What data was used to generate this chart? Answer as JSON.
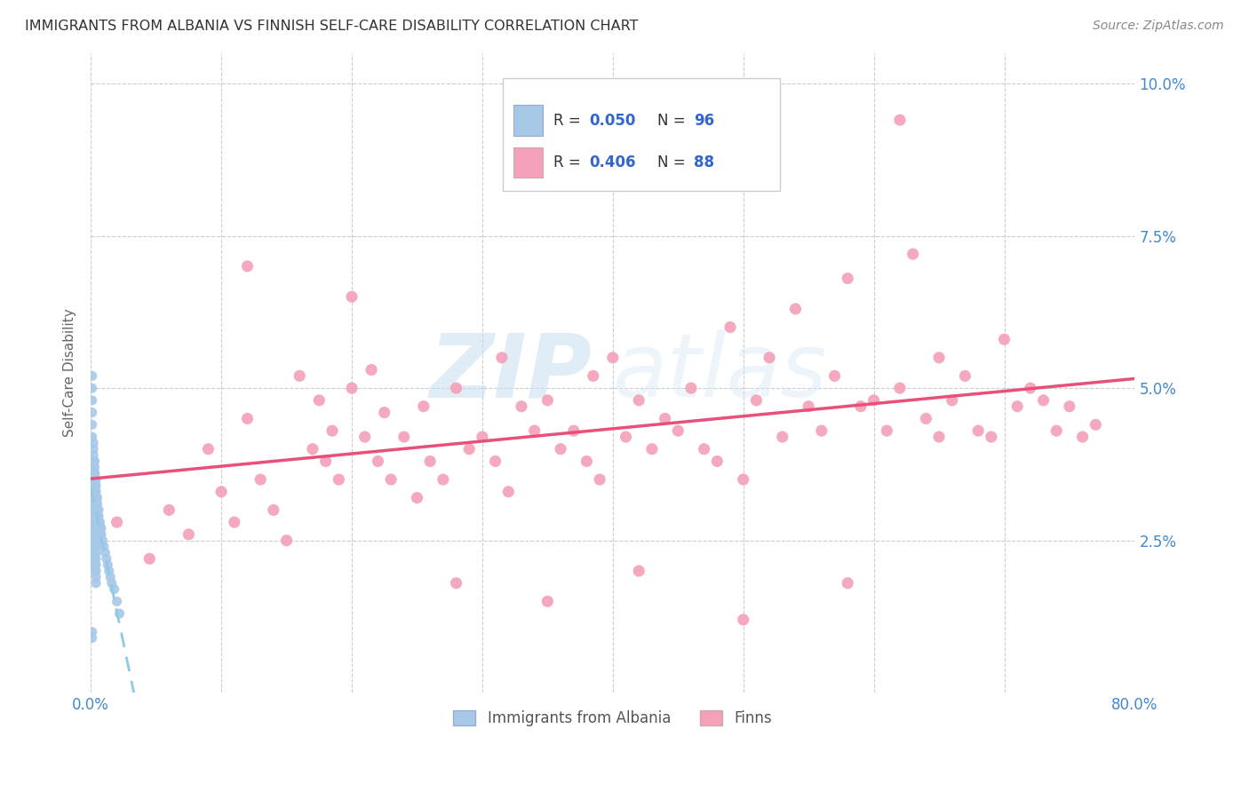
{
  "title": "IMMIGRANTS FROM ALBANIA VS FINNISH SELF-CARE DISABILITY CORRELATION CHART",
  "source": "Source: ZipAtlas.com",
  "ylabel": "Self-Care Disability",
  "xlim": [
    0.0,
    0.8
  ],
  "ylim": [
    0.0,
    0.105
  ],
  "xticklabels": [
    "0.0%",
    "",
    "",
    "",
    "",
    "",
    "",
    "",
    "80.0%"
  ],
  "yticklabels": [
    "",
    "2.5%",
    "5.0%",
    "7.5%",
    "10.0%"
  ],
  "color_albania": "#a8c8e8",
  "color_finns": "#f4a0b8",
  "trendline_albania_color": "#90c8e8",
  "trendline_finns_color": "#e8507a",
  "watermark_zip": "ZIP",
  "watermark_atlas": "atlas",
  "background_color": "#ffffff",
  "grid_color": "#cccccc",
  "title_color": "#333333",
  "axis_label_color": "#666666",
  "tick_color": "#4488cc",
  "albania_x": [
    0.001,
    0.001,
    0.001,
    0.001,
    0.001,
    0.001,
    0.002,
    0.002,
    0.002,
    0.002,
    0.002,
    0.002,
    0.002,
    0.002,
    0.002,
    0.002,
    0.002,
    0.002,
    0.002,
    0.002,
    0.002,
    0.002,
    0.002,
    0.002,
    0.003,
    0.003,
    0.003,
    0.003,
    0.003,
    0.003,
    0.003,
    0.003,
    0.003,
    0.003,
    0.003,
    0.003,
    0.003,
    0.003,
    0.003,
    0.003,
    0.003,
    0.003,
    0.003,
    0.004,
    0.004,
    0.004,
    0.004,
    0.004,
    0.004,
    0.004,
    0.004,
    0.004,
    0.004,
    0.004,
    0.004,
    0.004,
    0.004,
    0.004,
    0.004,
    0.004,
    0.004,
    0.005,
    0.005,
    0.005,
    0.005,
    0.005,
    0.005,
    0.005,
    0.005,
    0.006,
    0.006,
    0.006,
    0.006,
    0.006,
    0.007,
    0.007,
    0.007,
    0.008,
    0.008,
    0.009,
    0.01,
    0.011,
    0.012,
    0.013,
    0.014,
    0.015,
    0.016,
    0.018,
    0.02,
    0.022,
    0.001,
    0.001,
    0.002,
    0.002,
    0.003,
    0.003
  ],
  "albania_y": [
    0.052,
    0.05,
    0.048,
    0.046,
    0.044,
    0.042,
    0.041,
    0.04,
    0.039,
    0.038,
    0.037,
    0.036,
    0.035,
    0.034,
    0.033,
    0.032,
    0.031,
    0.03,
    0.029,
    0.028,
    0.027,
    0.026,
    0.025,
    0.024,
    0.038,
    0.037,
    0.036,
    0.035,
    0.034,
    0.033,
    0.032,
    0.031,
    0.03,
    0.029,
    0.028,
    0.027,
    0.026,
    0.025,
    0.024,
    0.023,
    0.022,
    0.021,
    0.02,
    0.035,
    0.034,
    0.033,
    0.032,
    0.031,
    0.03,
    0.029,
    0.028,
    0.027,
    0.026,
    0.025,
    0.024,
    0.023,
    0.022,
    0.021,
    0.02,
    0.019,
    0.018,
    0.032,
    0.031,
    0.03,
    0.029,
    0.028,
    0.027,
    0.026,
    0.025,
    0.03,
    0.029,
    0.028,
    0.027,
    0.026,
    0.028,
    0.027,
    0.026,
    0.027,
    0.026,
    0.025,
    0.024,
    0.023,
    0.022,
    0.021,
    0.02,
    0.019,
    0.018,
    0.017,
    0.015,
    0.013,
    0.01,
    0.009,
    0.035,
    0.033,
    0.036,
    0.034
  ],
  "finns_x": [
    0.02,
    0.045,
    0.06,
    0.075,
    0.09,
    0.1,
    0.11,
    0.12,
    0.13,
    0.14,
    0.15,
    0.16,
    0.17,
    0.175,
    0.18,
    0.185,
    0.19,
    0.2,
    0.21,
    0.215,
    0.22,
    0.225,
    0.23,
    0.24,
    0.25,
    0.255,
    0.26,
    0.27,
    0.28,
    0.29,
    0.3,
    0.31,
    0.315,
    0.32,
    0.33,
    0.34,
    0.35,
    0.36,
    0.37,
    0.38,
    0.385,
    0.39,
    0.4,
    0.41,
    0.42,
    0.43,
    0.44,
    0.45,
    0.46,
    0.47,
    0.48,
    0.49,
    0.5,
    0.51,
    0.52,
    0.53,
    0.54,
    0.55,
    0.56,
    0.57,
    0.58,
    0.59,
    0.6,
    0.61,
    0.62,
    0.63,
    0.64,
    0.65,
    0.66,
    0.67,
    0.68,
    0.69,
    0.7,
    0.71,
    0.72,
    0.73,
    0.74,
    0.75,
    0.76,
    0.77,
    0.12,
    0.2,
    0.28,
    0.35,
    0.42,
    0.5,
    0.58,
    0.65
  ],
  "finns_y": [
    0.028,
    0.022,
    0.03,
    0.026,
    0.04,
    0.033,
    0.028,
    0.045,
    0.035,
    0.03,
    0.025,
    0.052,
    0.04,
    0.048,
    0.038,
    0.043,
    0.035,
    0.05,
    0.042,
    0.053,
    0.038,
    0.046,
    0.035,
    0.042,
    0.032,
    0.047,
    0.038,
    0.035,
    0.05,
    0.04,
    0.042,
    0.038,
    0.055,
    0.033,
    0.047,
    0.043,
    0.048,
    0.04,
    0.043,
    0.038,
    0.052,
    0.035,
    0.055,
    0.042,
    0.048,
    0.04,
    0.045,
    0.043,
    0.05,
    0.04,
    0.038,
    0.06,
    0.035,
    0.048,
    0.055,
    0.042,
    0.063,
    0.047,
    0.043,
    0.052,
    0.068,
    0.047,
    0.048,
    0.043,
    0.05,
    0.072,
    0.045,
    0.055,
    0.048,
    0.052,
    0.043,
    0.042,
    0.058,
    0.047,
    0.05,
    0.048,
    0.043,
    0.047,
    0.042,
    0.044,
    0.07,
    0.065,
    0.018,
    0.015,
    0.02,
    0.012,
    0.018,
    0.042
  ],
  "finns_outlier_x": [
    0.62
  ],
  "finns_outlier_y": [
    0.094
  ]
}
